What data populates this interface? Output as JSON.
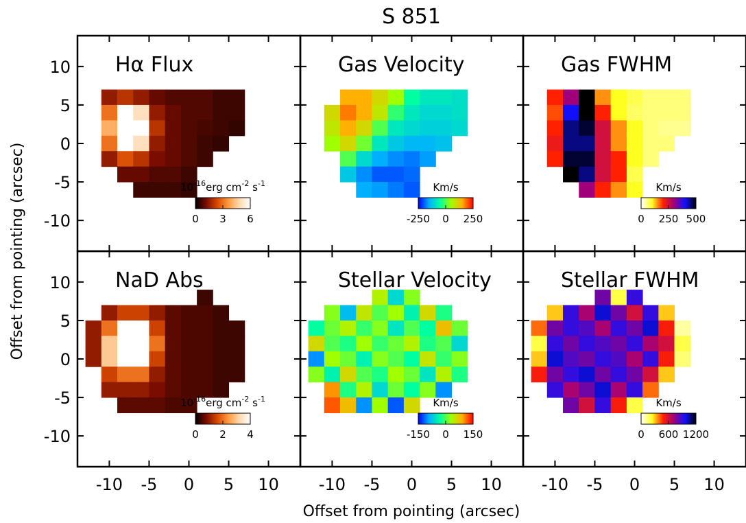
{
  "title": "S 851",
  "xlabel": "Offset from pointing (arcsec)",
  "ylabel": "Offset from pointing (arcsec)",
  "axes": {
    "xlim": [
      -14,
      14
    ],
    "ylim": [
      -14,
      14
    ],
    "xticks": [
      -10,
      -5,
      0,
      5,
      10
    ],
    "yticks": [
      -10,
      -5,
      0,
      5,
      10
    ]
  },
  "chart_data": [
    {
      "type": "heatmap",
      "title": "Hα Flux",
      "x": [
        -12,
        -10,
        -8,
        -6,
        -4,
        -2,
        0,
        2,
        4,
        6,
        8
      ],
      "y": [
        8,
        6,
        4,
        2,
        0,
        -2,
        -4,
        -6,
        -8
      ],
      "values": [
        [
          null,
          null,
          null,
          null,
          null,
          null,
          null,
          null,
          null,
          null,
          null
        ],
        [
          null,
          1.5,
          2,
          1.5,
          1,
          0.8,
          0.8,
          0.8,
          0.6,
          0.6,
          null
        ],
        [
          null,
          3,
          6,
          5,
          1.5,
          1,
          0.8,
          0.8,
          0.6,
          0.6,
          null
        ],
        [
          null,
          4,
          6,
          6,
          2,
          1,
          0.8,
          0.7,
          0.6,
          0.5,
          null
        ],
        [
          null,
          3,
          6,
          5,
          1.5,
          1,
          0.8,
          0.6,
          0.5,
          null,
          null
        ],
        [
          null,
          1.5,
          2.5,
          2,
          1.2,
          1,
          0.8,
          0.6,
          null,
          null,
          null
        ],
        [
          null,
          null,
          1,
          1,
          0.8,
          0.8,
          0.6,
          null,
          null,
          null,
          null
        ],
        [
          null,
          null,
          null,
          0.6,
          0.6,
          0.6,
          0.5,
          null,
          null,
          null,
          null
        ],
        [
          null,
          null,
          null,
          null,
          null,
          null,
          null,
          null,
          null,
          null,
          null
        ]
      ],
      "colors": [
        "#000000",
        "#7a0c00",
        "#d84a00",
        "#ff9a40",
        "#ffd9b0",
        "#ffffff"
      ],
      "clim": [
        0,
        6
      ],
      "colorbar_ticks": [
        0,
        3,
        6
      ],
      "colorbar_label": [
        "10",
        "-16",
        "erg cm",
        "-2",
        " s",
        "-1"
      ]
    },
    {
      "type": "heatmap",
      "title": "Gas Velocity",
      "x": [
        -12,
        -10,
        -8,
        -6,
        -4,
        -2,
        0,
        2,
        4,
        6,
        8
      ],
      "y": [
        8,
        6,
        4,
        2,
        0,
        -2,
        -4,
        -6,
        -8
      ],
      "values": [
        [
          null,
          null,
          null,
          null,
          null,
          null,
          null,
          null,
          null,
          null,
          null
        ],
        [
          null,
          null,
          150,
          150,
          100,
          50,
          -50,
          -80,
          -80,
          -90,
          null
        ],
        [
          null,
          100,
          180,
          150,
          80,
          -20,
          -80,
          -100,
          -100,
          -90,
          null
        ],
        [
          null,
          80,
          150,
          100,
          0,
          -80,
          -100,
          -110,
          -110,
          -100,
          null
        ],
        [
          null,
          50,
          100,
          20,
          -80,
          -120,
          -140,
          -140,
          -130,
          null,
          null
        ],
        [
          null,
          null,
          0,
          -100,
          -150,
          -170,
          -180,
          -160,
          null,
          null,
          null
        ],
        [
          null,
          null,
          -120,
          -170,
          -200,
          -200,
          -190,
          null,
          null,
          null,
          null
        ],
        [
          null,
          null,
          null,
          -150,
          -160,
          -180,
          -200,
          null,
          null,
          null,
          null
        ],
        [
          null,
          null,
          null,
          null,
          null,
          null,
          null,
          null,
          null,
          null,
          null
        ]
      ],
      "colors": [
        "#0000ff",
        "#00b0ff",
        "#00ffa0",
        "#a0ff00",
        "#ffb000",
        "#ff0000"
      ],
      "clim": [
        -250,
        250
      ],
      "colorbar_ticks": [
        -250,
        0,
        250
      ],
      "colorbar_label": "Km/s"
    },
    {
      "type": "heatmap",
      "title": "Gas FWHM",
      "x": [
        -12,
        -10,
        -8,
        -6,
        -4,
        -2,
        0,
        2,
        4,
        6,
        8
      ],
      "y": [
        8,
        6,
        4,
        2,
        0,
        -2,
        -4,
        -6,
        -8
      ],
      "values": [
        [
          null,
          null,
          null,
          null,
          null,
          null,
          null,
          null,
          null,
          null,
          null
        ],
        [
          null,
          200,
          300,
          500,
          150,
          100,
          80,
          60,
          60,
          60,
          null
        ],
        [
          null,
          180,
          400,
          500,
          200,
          100,
          70,
          60,
          60,
          60,
          null
        ],
        [
          null,
          200,
          450,
          480,
          250,
          150,
          100,
          60,
          50,
          50,
          null
        ],
        [
          null,
          220,
          450,
          450,
          250,
          150,
          100,
          60,
          60,
          null,
          null
        ],
        [
          null,
          200,
          480,
          480,
          250,
          200,
          100,
          60,
          null,
          null,
          null
        ],
        [
          null,
          null,
          500,
          450,
          250,
          200,
          80,
          null,
          null,
          null,
          null
        ],
        [
          null,
          null,
          null,
          300,
          200,
          150,
          100,
          null,
          null,
          null,
          null
        ],
        [
          null,
          null,
          null,
          null,
          null,
          null,
          null,
          null,
          null,
          null,
          null
        ]
      ],
      "colors": [
        "#ffffff",
        "#ffff20",
        "#ff2000",
        "#a0007a",
        "#1010ff",
        "#000000"
      ],
      "clim": [
        0,
        500
      ],
      "colorbar_ticks": [
        0,
        250,
        500
      ],
      "colorbar_label": "Km/s"
    },
    {
      "type": "heatmap",
      "title": "NaD Abs",
      "x": [
        -12,
        -10,
        -8,
        -6,
        -4,
        -2,
        0,
        2,
        4,
        6,
        8
      ],
      "y": [
        8,
        6,
        4,
        2,
        0,
        -2,
        -4,
        -6,
        -8
      ],
      "values": [
        [
          null,
          null,
          null,
          null,
          null,
          null,
          null,
          0.4,
          null,
          null,
          null
        ],
        [
          null,
          1,
          1.5,
          1.5,
          1,
          0.6,
          0.5,
          0.5,
          0.4,
          null,
          null
        ],
        [
          1,
          2,
          4,
          4,
          1.5,
          0.6,
          0.5,
          0.5,
          0.4,
          0.4,
          null
        ],
        [
          1,
          3,
          4,
          4,
          2,
          0.6,
          0.5,
          0.5,
          0.4,
          0.4,
          null
        ],
        [
          1,
          3,
          4,
          4,
          1.5,
          0.6,
          0.5,
          0.5,
          0.4,
          0.4,
          null
        ],
        [
          null,
          1.5,
          2,
          2,
          1,
          0.6,
          0.5,
          0.5,
          0.4,
          0.4,
          null
        ],
        [
          null,
          1,
          1,
          1,
          0.8,
          0.6,
          0.5,
          0.5,
          0.4,
          null,
          null
        ],
        [
          null,
          null,
          0.6,
          0.6,
          0.6,
          0.5,
          0.5,
          null,
          null,
          null,
          null
        ],
        [
          null,
          null,
          null,
          null,
          null,
          null,
          null,
          null,
          null,
          null,
          null
        ]
      ],
      "colors": [
        "#000000",
        "#7a0c00",
        "#d84a00",
        "#ff9a40",
        "#ffd9b0",
        "#ffffff"
      ],
      "clim": [
        0,
        4
      ],
      "colorbar_ticks": [
        0,
        2,
        4
      ],
      "colorbar_label": [
        "10",
        "-16",
        "erg cm",
        "-2",
        " s",
        "-1"
      ]
    },
    {
      "type": "heatmap",
      "title": "Stellar Velocity",
      "x": [
        -12,
        -10,
        -8,
        -6,
        -4,
        -2,
        0,
        2,
        4,
        6,
        8
      ],
      "y": [
        8,
        6,
        4,
        2,
        0,
        -2,
        -4,
        -6,
        -8
      ],
      "values": [
        [
          null,
          null,
          null,
          null,
          40,
          -60,
          20,
          null,
          null,
          null,
          null
        ],
        [
          null,
          20,
          -80,
          50,
          0,
          30,
          -40,
          60,
          -20,
          null,
          null
        ],
        [
          -30,
          10,
          40,
          -10,
          20,
          -50,
          0,
          -30,
          80,
          10,
          null
        ],
        [
          60,
          0,
          -20,
          30,
          -10,
          10,
          40,
          -20,
          0,
          -60,
          null
        ],
        [
          -100,
          30,
          10,
          -40,
          20,
          0,
          -30,
          50,
          -10,
          20,
          null
        ],
        [
          20,
          -40,
          60,
          0,
          -20,
          30,
          10,
          -50,
          40,
          -20,
          null
        ],
        [
          null,
          100,
          -20,
          40,
          -60,
          10,
          -30,
          20,
          -100,
          null,
          null
        ],
        [
          null,
          120,
          80,
          -100,
          30,
          -120,
          60,
          null,
          null,
          null,
          null
        ],
        [
          null,
          null,
          null,
          null,
          null,
          null,
          null,
          null,
          null,
          null,
          null
        ]
      ],
      "colors": [
        "#0000ff",
        "#00b0ff",
        "#00ffa0",
        "#a0ff00",
        "#ffb000",
        "#ff0000"
      ],
      "clim": [
        -150,
        150
      ],
      "colorbar_ticks": [
        -150,
        0,
        150
      ],
      "colorbar_label": "Km/s"
    },
    {
      "type": "heatmap",
      "title": "Stellar FWHM",
      "x": [
        -12,
        -10,
        -8,
        -6,
        -4,
        -2,
        0,
        2,
        4,
        6,
        8
      ],
      "y": [
        8,
        6,
        4,
        2,
        0,
        -2,
        -4,
        -6,
        -8
      ],
      "values": [
        [
          null,
          null,
          null,
          null,
          800,
          200,
          900,
          null,
          null,
          null,
          null
        ],
        [
          null,
          300,
          900,
          700,
          1000,
          800,
          600,
          900,
          300,
          null,
          null
        ],
        [
          400,
          800,
          900,
          850,
          700,
          900,
          800,
          1000,
          500,
          100,
          null
        ],
        [
          200,
          900,
          800,
          900,
          850,
          800,
          900,
          700,
          600,
          200,
          null
        ],
        [
          300,
          1000,
          850,
          800,
          900,
          850,
          700,
          900,
          500,
          150,
          null
        ],
        [
          500,
          800,
          900,
          1000,
          800,
          900,
          800,
          600,
          300,
          null,
          null
        ],
        [
          null,
          900,
          700,
          800,
          1000,
          700,
          900,
          400,
          null,
          null,
          null
        ],
        [
          null,
          null,
          800,
          600,
          900,
          500,
          200,
          null,
          null,
          null,
          null
        ],
        [
          null,
          null,
          null,
          null,
          null,
          null,
          null,
          null,
          null,
          null,
          null
        ]
      ],
      "colors": [
        "#ffffff",
        "#ffff20",
        "#ff2000",
        "#a0007a",
        "#1010ff",
        "#000000"
      ],
      "clim": [
        0,
        1200
      ],
      "colorbar_ticks": [
        0,
        600,
        1200
      ],
      "colorbar_label": "Km/s"
    }
  ]
}
